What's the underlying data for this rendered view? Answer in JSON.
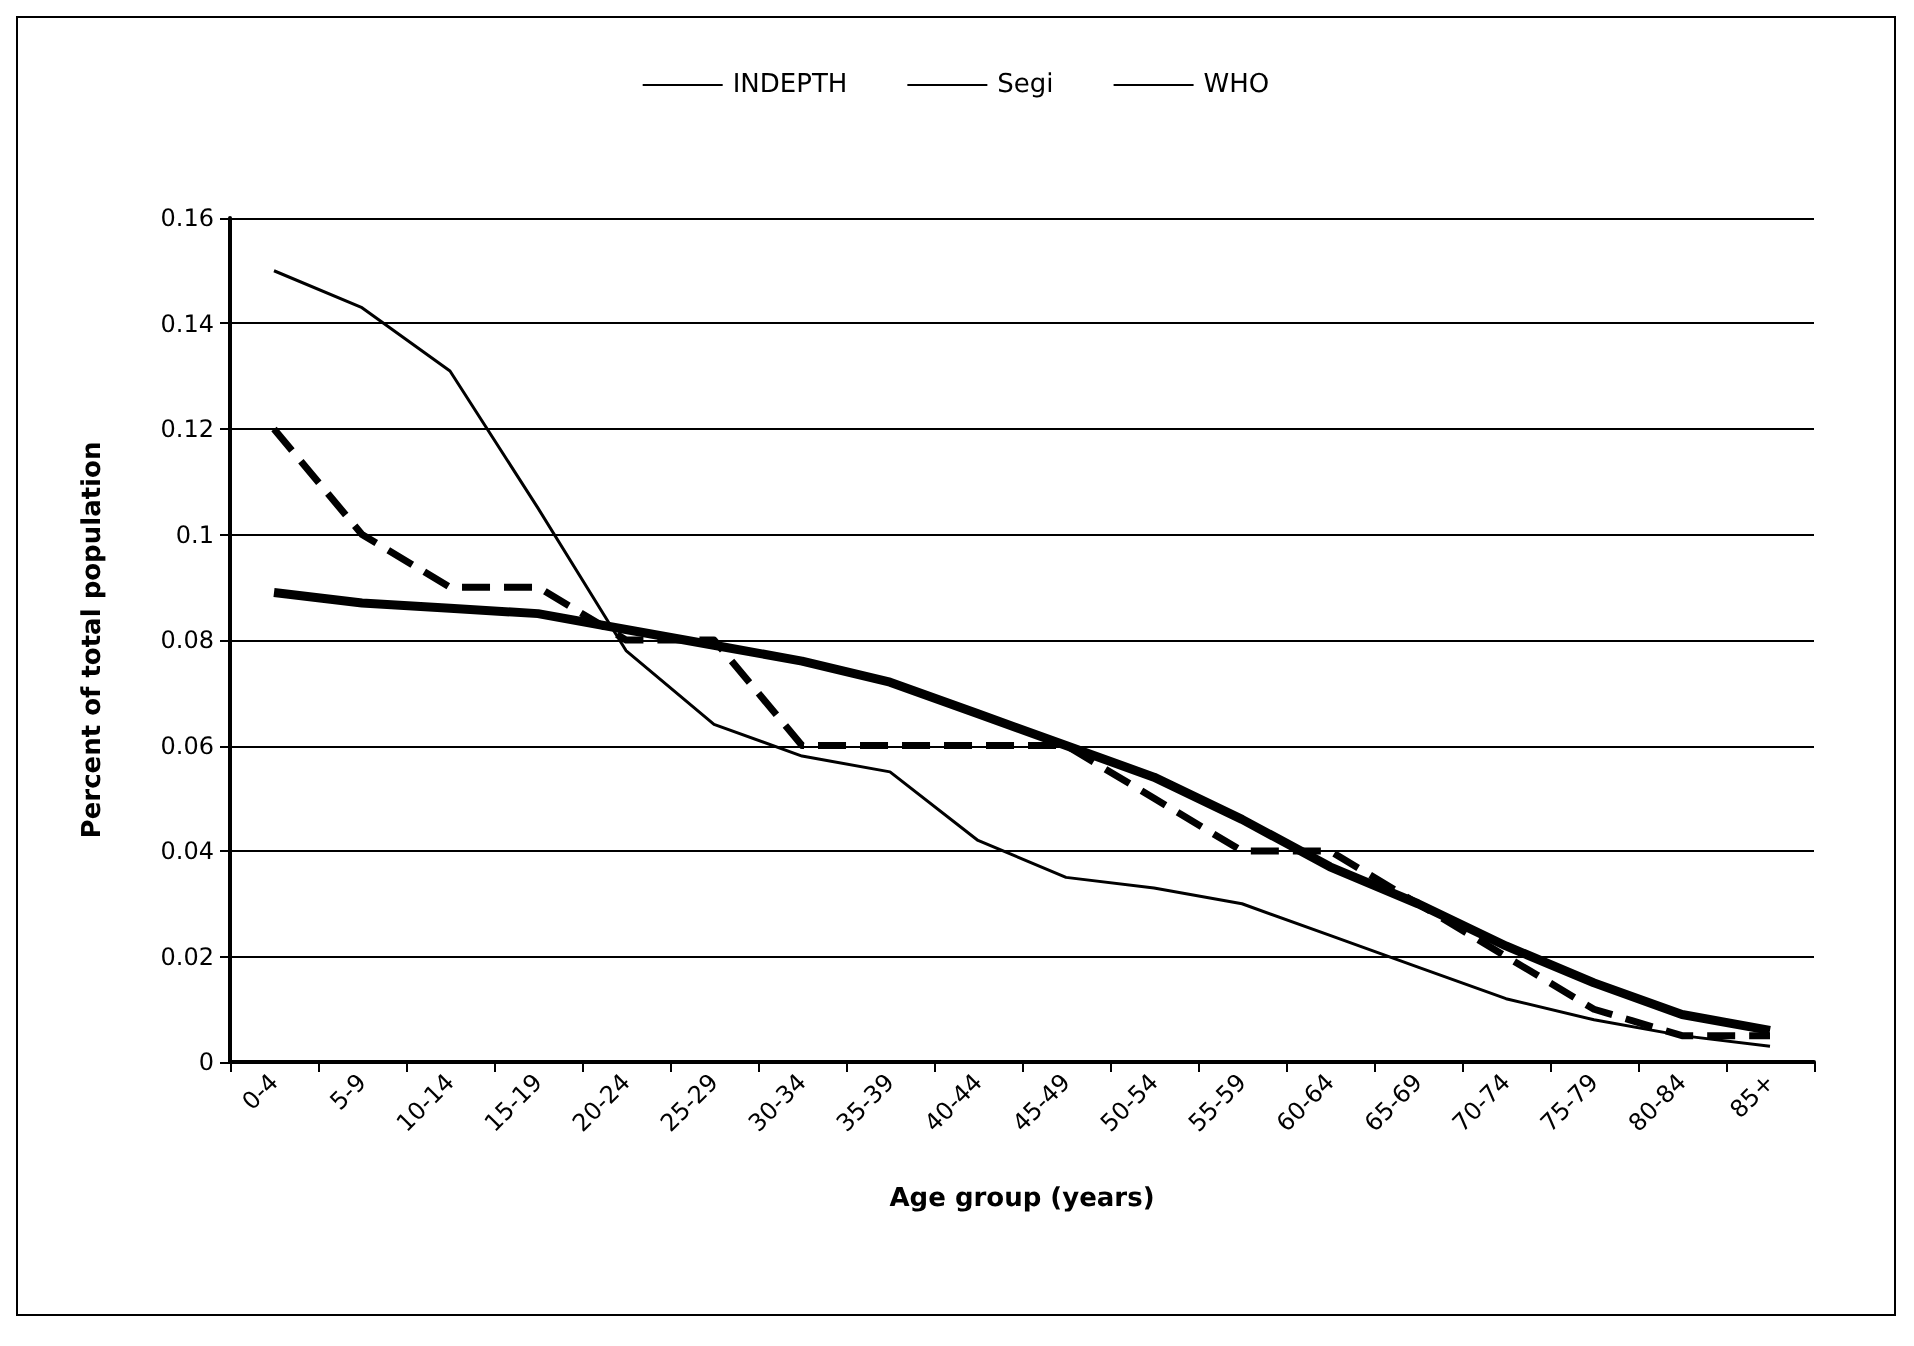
{
  "chart_data": {
    "type": "line",
    "xlabel": "Age group (years)",
    "ylabel": "Percent of total population",
    "categories": [
      "0-4",
      "5-9",
      "10-14",
      "15-19",
      "20-24",
      "25-29",
      "30-34",
      "35-39",
      "40-44",
      "45-49",
      "50-54",
      "55-59",
      "60-64",
      "65-69",
      "70-74",
      "75-79",
      "80-84",
      "85+"
    ],
    "series": [
      {
        "name": "INDEPTH",
        "color": "#000000",
        "line_style": "solid",
        "values": [
          0.15,
          0.143,
          0.131,
          0.105,
          0.078,
          0.064,
          0.058,
          0.055,
          0.042,
          0.035,
          0.033,
          0.03,
          0.024,
          0.018,
          0.012,
          0.008,
          0.005,
          0.003
        ]
      },
      {
        "name": "Segi",
        "color": "#000000",
        "line_style": "dashed",
        "values": [
          0.12,
          0.1,
          0.09,
          0.09,
          0.08,
          0.08,
          0.06,
          0.06,
          0.06,
          0.06,
          0.05,
          0.04,
          0.04,
          0.03,
          0.02,
          0.01,
          0.005,
          0.005
        ]
      },
      {
        "name": "WHO",
        "color": "#000000",
        "line_style": "solid",
        "values": [
          0.089,
          0.087,
          0.086,
          0.085,
          0.082,
          0.079,
          0.076,
          0.072,
          0.066,
          0.06,
          0.054,
          0.046,
          0.037,
          0.03,
          0.022,
          0.015,
          0.009,
          0.006
        ]
      }
    ],
    "ylim": [
      0,
      0.16
    ],
    "yticks": [
      0,
      0.02,
      0.04,
      0.06,
      0.08,
      0.1,
      0.12,
      0.14,
      0.16
    ],
    "grid": "y",
    "legend": "top",
    "marker": "none"
  }
}
